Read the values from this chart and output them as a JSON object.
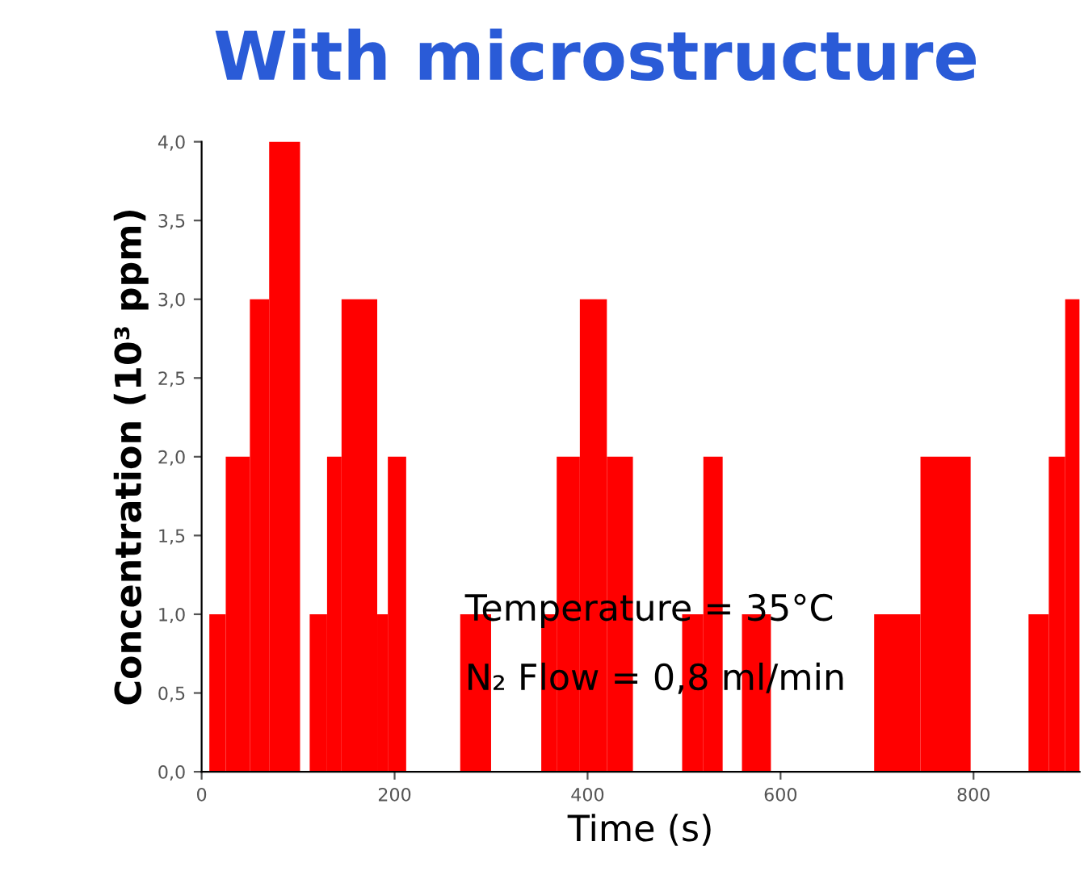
{
  "chart_data": {
    "type": "histogram",
    "title": "With microstructure",
    "xlabel": "Time (s)",
    "ylabel": "Concentration (10³ ppm)",
    "bins": [
      8,
      25,
      50,
      70,
      102,
      112,
      130,
      145,
      182,
      193,
      212,
      268,
      300,
      352,
      368,
      392,
      420,
      447,
      498,
      520,
      540,
      560,
      590,
      697,
      745,
      797,
      857,
      878,
      895,
      910
    ],
    "values": [
      1,
      2,
      3,
      4,
      0,
      1,
      2,
      3,
      1,
      2,
      0,
      1,
      0,
      1,
      2,
      3,
      2,
      0,
      1,
      2,
      0,
      1,
      0,
      1,
      2,
      0,
      1,
      2,
      3
    ],
    "color": "#ff0000",
    "xlim": [
      0,
      910
    ],
    "xticks": [
      0,
      200,
      400,
      600,
      800
    ],
    "ylim": [
      0,
      4.0
    ],
    "yticks": [
      {
        "value": 0,
        "label": "0,0"
      },
      {
        "value": 0.5,
        "label": "0,5"
      },
      {
        "value": 1.0,
        "label": "1,0"
      },
      {
        "value": 1.5,
        "label": "1,5"
      },
      {
        "value": 2.0,
        "label": "2,0"
      },
      {
        "value": 2.5,
        "label": "2,5"
      },
      {
        "value": 3.0,
        "label": "3,0"
      },
      {
        "value": 3.5,
        "label": "3,5"
      },
      {
        "value": 4.0,
        "label": "4,0"
      }
    ],
    "annotations": [
      "Temperature = 35°C",
      "N₂ Flow = 0,8 ml/min"
    ],
    "grid": false,
    "legend": false
  }
}
